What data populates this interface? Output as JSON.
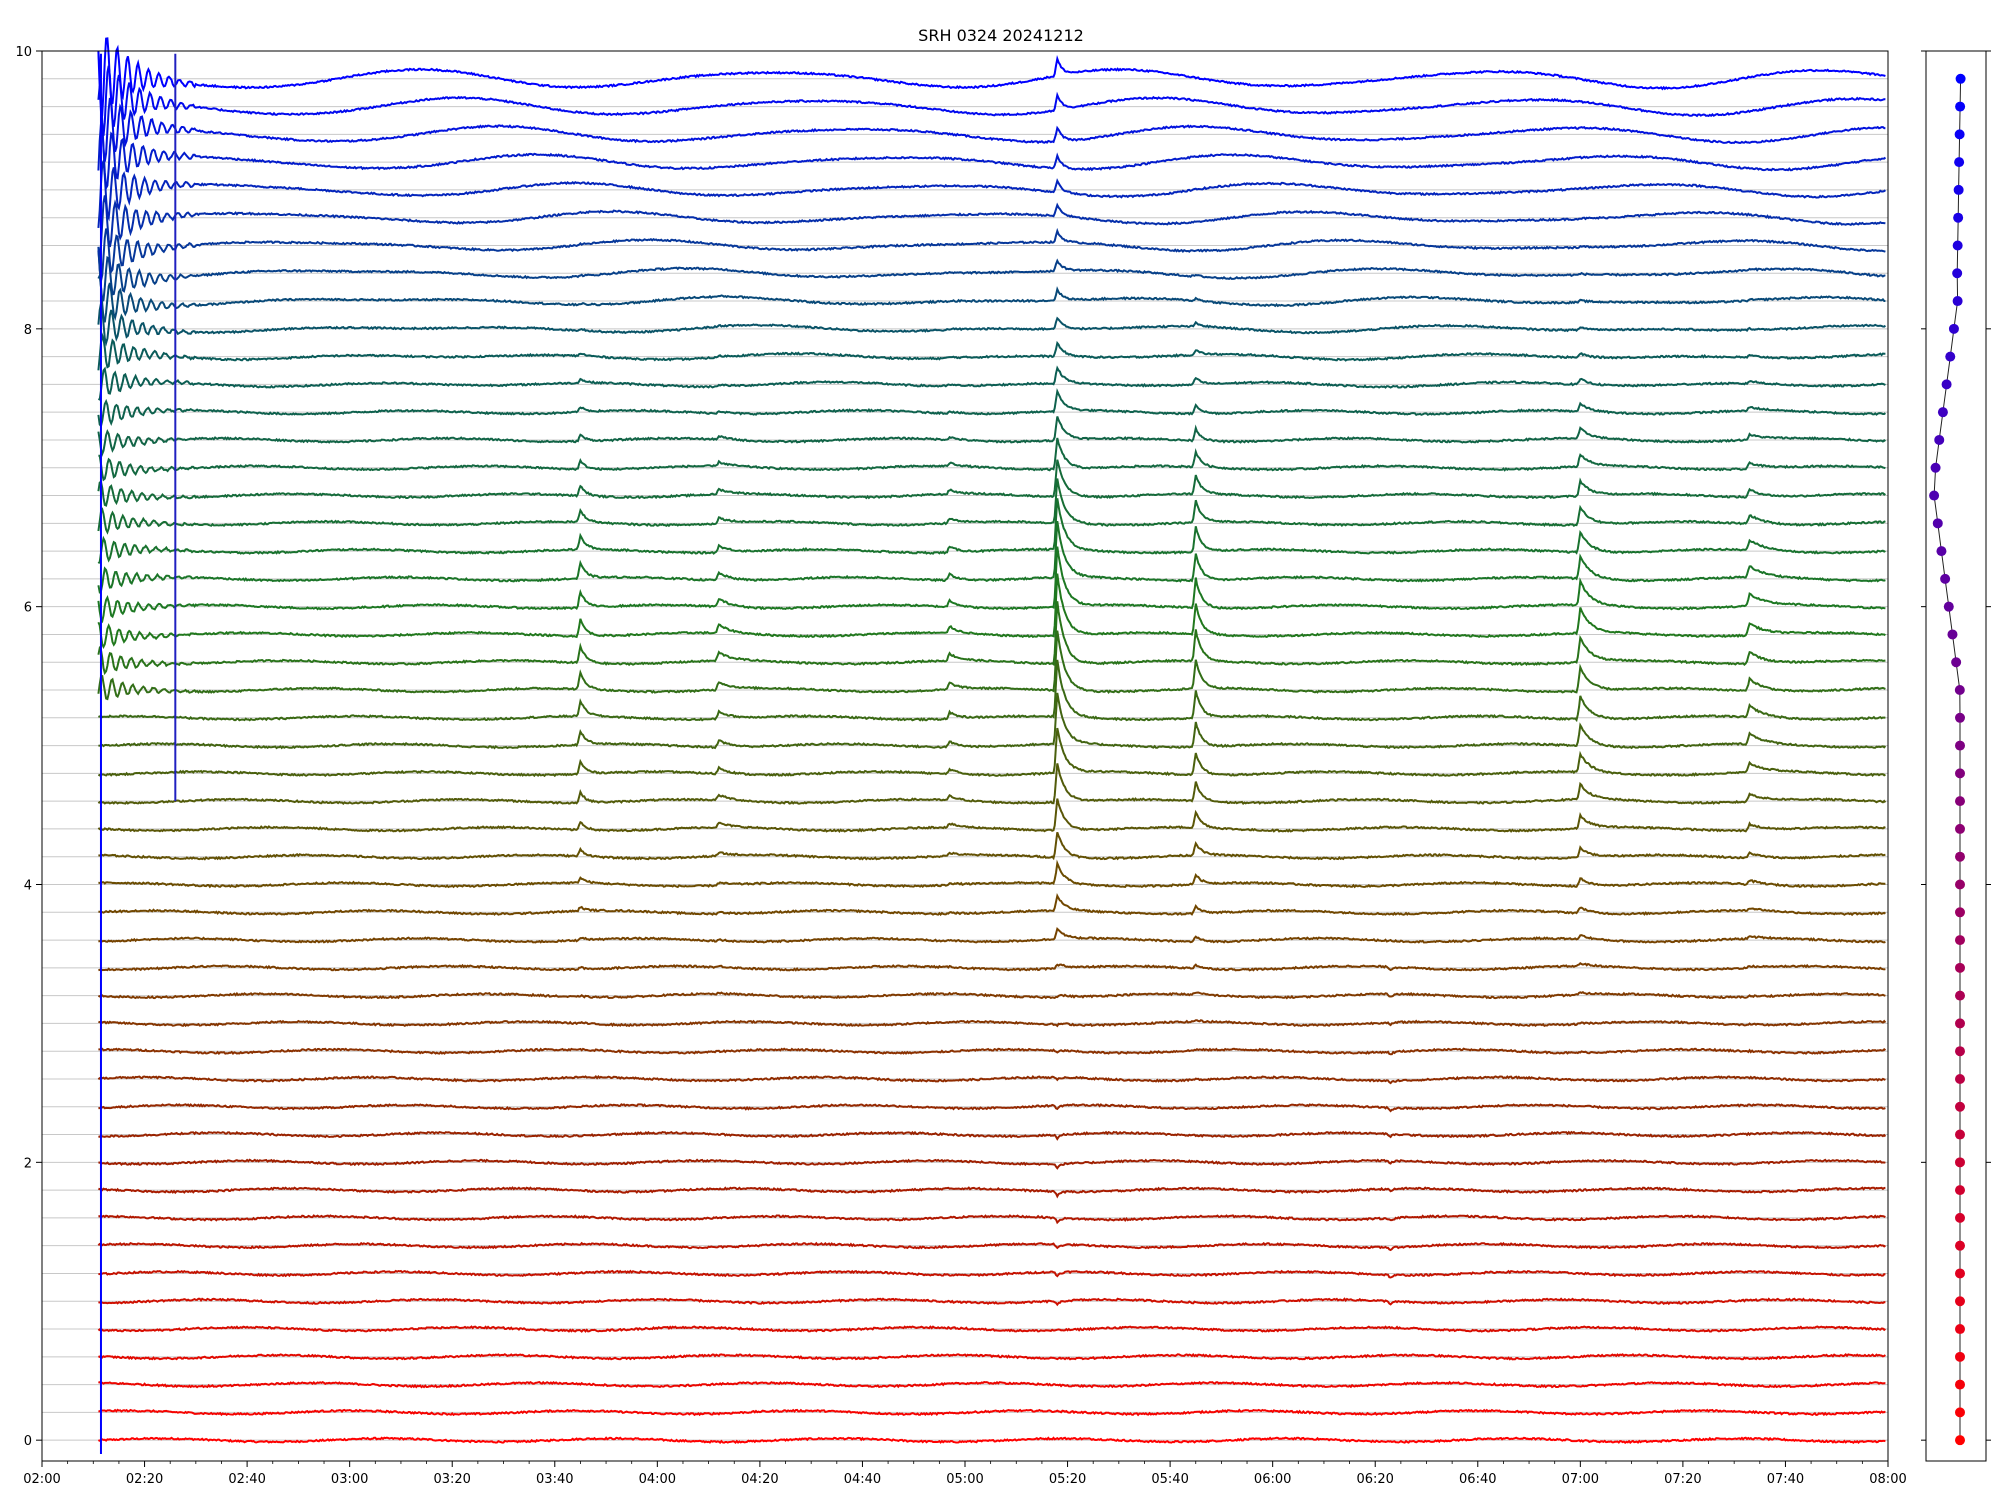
{
  "chart_data": [
    {
      "type": "line",
      "title": "SRH 0324 20241212",
      "xlabel": "",
      "ylabel": "",
      "x_start": "02:00",
      "x_end": "08:00",
      "x_ticks": [
        "02:00",
        "02:20",
        "02:40",
        "03:00",
        "03:20",
        "03:40",
        "04:00",
        "04:20",
        "04:40",
        "05:00",
        "05:20",
        "05:40",
        "06:00",
        "06:20",
        "06:40",
        "07:00",
        "07:20",
        "07:40",
        "08:00"
      ],
      "ylim": [
        -0.15,
        10
      ],
      "y_ticks": [
        0,
        2,
        4,
        6,
        8,
        10
      ],
      "y_tick_labels": [
        "0",
        "2",
        "4",
        "6",
        "8",
        "10"
      ],
      "grid": "horizontal reference line at each trace baseline",
      "legend": "none",
      "series_count": 50,
      "series_spacing": 0.2,
      "series_baselines_range": [
        0.0,
        9.8
      ],
      "color_gradient": [
        "#ff0000",
        "#a01e00",
        "#6e4a00",
        "#1e7a1e",
        "#0a5a5a",
        "#0000ff"
      ],
      "events": [
        {
          "time": "02:10",
          "kind": "large oscillation burst, top channels"
        },
        {
          "time": "02:26",
          "kind": "spike"
        },
        {
          "time": "03:45",
          "kind": "burst"
        },
        {
          "time": "04:12",
          "kind": "burst"
        },
        {
          "time": "05:18",
          "kind": "strongest burst, all channels"
        },
        {
          "time": "05:45",
          "kind": "burst"
        },
        {
          "time": "06:23",
          "kind": "small dip, low channels"
        },
        {
          "time": "07:00",
          "kind": "burst"
        },
        {
          "time": "07:33",
          "kind": "burst"
        }
      ]
    },
    {
      "type": "scatter",
      "title": "",
      "x_ticks": [],
      "y_ticks": [],
      "points": 50,
      "x_range": [
        -0.1,
        0.1
      ],
      "color_gradient": [
        "#ff0000",
        "#0000ff"
      ]
    }
  ]
}
